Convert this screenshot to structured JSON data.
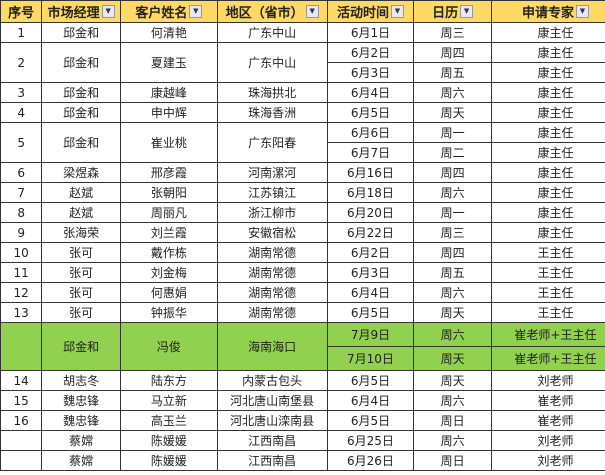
{
  "headers": [
    "序号",
    "市场经理",
    "客户姓名",
    "地区（省市）",
    "活动时间",
    "日历",
    "申请专家"
  ],
  "filter_icon": "dropdown-arrow-icon",
  "colors": {
    "header_bg": "#FFD966",
    "highlight_bg": "#92D050"
  },
  "rows": [
    {
      "no": "1",
      "manager": "邱金和",
      "customer": "何清艳",
      "region": "广东中山",
      "dates": [
        [
          "6月1日",
          "周三",
          "康主任"
        ]
      ]
    },
    {
      "no": "2",
      "manager": "邱金和",
      "customer": "夏建玉",
      "region": "广东中山",
      "dates": [
        [
          "6月2日",
          "周四",
          "康主任"
        ],
        [
          "6月3日",
          "周五",
          "康主任"
        ]
      ]
    },
    {
      "no": "3",
      "manager": "邱金和",
      "customer": "康越峰",
      "region": "珠海拱北",
      "dates": [
        [
          "6月4日",
          "周六",
          "康主任"
        ]
      ]
    },
    {
      "no": "4",
      "manager": "邱金和",
      "customer": "申中辉",
      "region": "珠海香洲",
      "dates": [
        [
          "6月5日",
          "周天",
          "康主任"
        ]
      ]
    },
    {
      "no": "5",
      "manager": "邱金和",
      "customer": "崔业桃",
      "region": "广东阳春",
      "dates": [
        [
          "6月6日",
          "周一",
          "康主任"
        ],
        [
          "6月7日",
          "周二",
          "康主任"
        ]
      ]
    },
    {
      "no": "6",
      "manager": "梁煜森",
      "customer": "邢彦霞",
      "region": "河南漯河",
      "dates": [
        [
          "6月16日",
          "周四",
          "康主任"
        ]
      ]
    },
    {
      "no": "7",
      "manager": "赵斌",
      "customer": "张朝阳",
      "region": "江苏镇江",
      "dates": [
        [
          "6月18日",
          "周六",
          "康主任"
        ]
      ]
    },
    {
      "no": "8",
      "manager": "赵斌",
      "customer": "周丽凡",
      "region": "浙江柳市",
      "dates": [
        [
          "6月20日",
          "周一",
          "康主任"
        ]
      ]
    },
    {
      "no": "9",
      "manager": "张海荣",
      "customer": "刘兰霞",
      "region": "安徽宿松",
      "dates": [
        [
          "6月22日",
          "周三",
          "康主任"
        ]
      ]
    },
    {
      "no": "10",
      "manager": "张可",
      "customer": "戴作栋",
      "region": "湖南常德",
      "dates": [
        [
          "6月2日",
          "周四",
          "王主任"
        ]
      ]
    },
    {
      "no": "11",
      "manager": "张可",
      "customer": "刘金梅",
      "region": "湖南常德",
      "dates": [
        [
          "6月3日",
          "周五",
          "王主任"
        ]
      ]
    },
    {
      "no": "12",
      "manager": "张可",
      "customer": "何惠娟",
      "region": "湖南常德",
      "dates": [
        [
          "6月4日",
          "周六",
          "王主任"
        ]
      ]
    },
    {
      "no": "13",
      "manager": "张可",
      "customer": "钟振华",
      "region": "湖南常德",
      "dates": [
        [
          "6月5日",
          "周天",
          "王主任"
        ]
      ]
    },
    {
      "no": "",
      "manager": "邱金和",
      "customer": "冯俊",
      "region": "海南海口",
      "highlight": true,
      "dates": [
        [
          "7月9日",
          "周六",
          "崔老师+王主任"
        ],
        [
          "7月10日",
          "周天",
          "崔老师+王主任"
        ]
      ]
    },
    {
      "no": "14",
      "manager": "胡志冬",
      "customer": "陆东方",
      "region": "内蒙古包头",
      "dates": [
        [
          "6月5日",
          "周天",
          "刘老师"
        ]
      ]
    },
    {
      "no": "15",
      "manager": "魏忠锋",
      "customer": "马立新",
      "region": "河北唐山南堡县",
      "dates": [
        [
          "6月4日",
          "周六",
          "崔老师"
        ]
      ]
    },
    {
      "no": "16",
      "manager": "魏忠锋",
      "customer": "高玉兰",
      "region": "河北唐山滦南县",
      "dates": [
        [
          "6月5日",
          "周日",
          "崔老师"
        ]
      ]
    },
    {
      "no": "",
      "manager": "蔡嫦",
      "customer": "陈媛媛",
      "region": "江西南昌",
      "dates": [
        [
          "6月25日",
          "周六",
          "刘老师"
        ]
      ]
    },
    {
      "no": "",
      "manager": "蔡嫦",
      "customer": "陈媛媛",
      "region": "江西南昌",
      "dates": [
        [
          "6月26日",
          "周日",
          "刘老师"
        ]
      ]
    }
  ]
}
